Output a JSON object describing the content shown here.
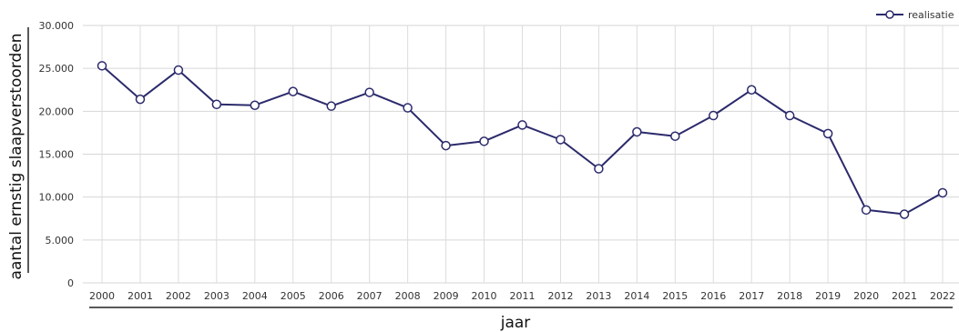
{
  "chart_data": {
    "type": "line",
    "xlabel": "jaar",
    "ylabel": "aantal ernstig slaapverstoorden",
    "ylim": [
      0,
      30000
    ],
    "yticks": [
      0,
      5000,
      10000,
      15000,
      20000,
      25000,
      30000
    ],
    "ytick_labels": [
      "0",
      "5.000",
      "10.000",
      "15.000",
      "20.000",
      "25.000",
      "30.000"
    ],
    "grid": true,
    "legend_position": "top-right",
    "categories": [
      "2000",
      "2001",
      "2002",
      "2003",
      "2004",
      "2005",
      "2006",
      "2007",
      "2008",
      "2009",
      "2010",
      "2011",
      "2012",
      "2013",
      "2014",
      "2015",
      "2016",
      "2017",
      "2018",
      "2019",
      "2020",
      "2021",
      "2022"
    ],
    "series": [
      {
        "name": "realisatie",
        "color": "#2b2a6b",
        "values": [
          25300,
          21400,
          24800,
          20800,
          20700,
          22300,
          20600,
          22200,
          20400,
          16000,
          16500,
          18400,
          16700,
          13300,
          17600,
          17100,
          19500,
          22500,
          19500,
          17400,
          8500,
          8000,
          10500
        ]
      }
    ]
  }
}
